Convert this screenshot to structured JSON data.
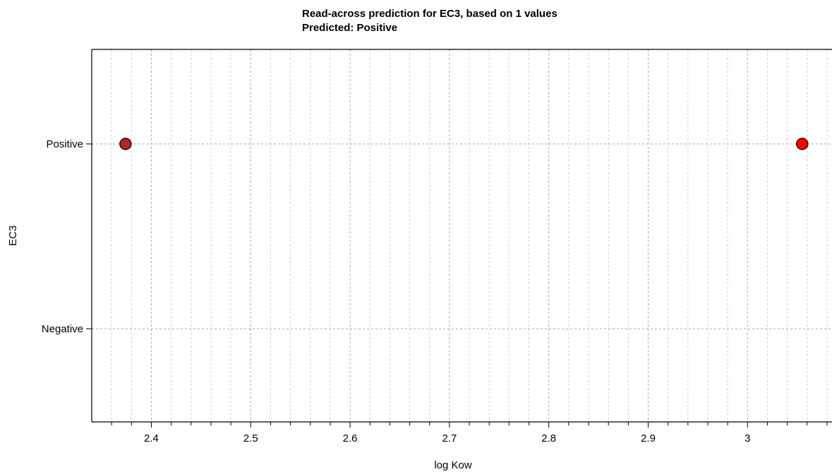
{
  "chart_data": {
    "type": "scatter",
    "title": "Read-across prediction for EC3, based on 1 values",
    "subtitle": "Predicted: Positive",
    "xlabel": "log Kow",
    "ylabel": "EC3",
    "xlim": [
      2.34,
      3.085
    ],
    "x_ticks": [
      2.4,
      2.5,
      2.6,
      2.7,
      2.8,
      2.9,
      3
    ],
    "x_tick_labels": [
      "2.4",
      "2.5",
      "2.6",
      "2.7",
      "2.8",
      "2.9",
      "3"
    ],
    "y_categories": [
      "Negative",
      "Positive"
    ],
    "grid": true,
    "points": [
      {
        "x": 2.374,
        "y": "Positive",
        "color": "#a52a2a"
      },
      {
        "x": 3.055,
        "y": "Positive",
        "color": "#ff0000"
      }
    ]
  }
}
